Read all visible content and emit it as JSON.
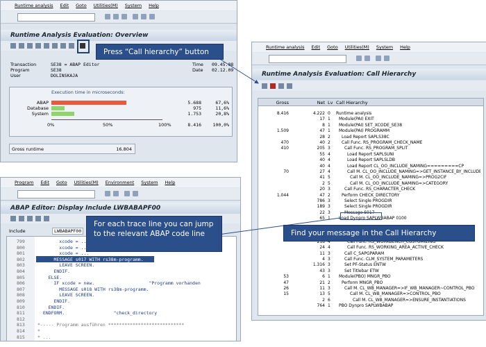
{
  "overview_window": {
    "menu": [
      "Runtime analysis",
      "Edit",
      "Goto",
      "Utilities(M)",
      "System",
      "Help"
    ],
    "title": "Runtime Analysis Evaluation: Overview",
    "fields": [
      {
        "label": "Transaction",
        "value": "SE38 = ABAP Editor"
      },
      {
        "label": "Program",
        "value": "SE38"
      },
      {
        "label": "User",
        "value": "DOLINSKAJA"
      }
    ],
    "right_fields": [
      {
        "label": "Time",
        "value": "09.45.08"
      },
      {
        "label": "Date",
        "value": "02.12.09"
      }
    ],
    "chart_title": "Execution time in microseconds:",
    "bars": [
      {
        "label": "ABAP",
        "value": "5.688",
        "share": "67,6%"
      },
      {
        "label": "Database",
        "value": "975",
        "share": "11,6%"
      },
      {
        "label": "System",
        "value": "1.753",
        "share": "20,8%"
      }
    ],
    "axis": [
      "0%",
      "50%",
      "100%"
    ],
    "total": {
      "value": "8.416",
      "share": "100,0%"
    },
    "gross_runtime": {
      "label": "Gross runtime",
      "value": "16.804"
    }
  },
  "hierarchy_window": {
    "menu": [
      "Runtime analysis",
      "Edit",
      "Goto",
      "Utilities(M)",
      "System",
      "Help"
    ],
    "title": "Runtime Analysis Evaluation: Call Hierarchy",
    "columns": [
      "Gross",
      "Net",
      "Lv",
      "Call Hierarchy"
    ],
    "rows": [
      [
        "8.416",
        "4.222",
        "0",
        "Runtime analysis"
      ],
      [
        null,
        "17",
        "1",
        "Module(PAI) EXIT"
      ],
      [
        null,
        "8",
        "1",
        "Module(PAI) SET_XCODE_SE38"
      ],
      [
        "1.509",
        "47",
        "1",
        "Module(PAI) PROGRAMM"
      ],
      [
        null,
        "28",
        "2",
        "Load Report SAPLS38C"
      ],
      [
        "470",
        "40",
        "2",
        "Call Func. RS_PROGRAM_CHECK_NAME"
      ],
      [
        "410",
        "205",
        "3",
        "Call Func. RS_PROGRAM_SPLIT"
      ],
      [
        null,
        "55",
        "4",
        "Load Report SAPLSUNI"
      ],
      [
        null,
        "40",
        "4",
        "Load Report SAPLSLDB"
      ],
      [
        null,
        "40",
        "4",
        "Load Report CL_OO_INCLUDE_NAMING=========CP"
      ],
      [
        "70",
        "27",
        "4",
        "Call M. CL_OO_INCLUDE_NAMING=>GET_INSTANCE_BY_INCLUDE"
      ],
      [
        null,
        "41",
        "5",
        "Call M. CL_OO_INCLUDE_NAMING=>PROG2CIF"
      ],
      [
        null,
        "2",
        "5",
        "Call M. CL_OO_INCLUDE_NAMING=>CATEGORY"
      ],
      [
        null,
        "20",
        "3",
        "Call Func. RS_CHARACTER_CHECK"
      ],
      [
        "1.044",
        "47",
        "2",
        "Perform CHECK_DIRECTORY"
      ],
      [
        null,
        "786",
        "3",
        "Select Single PROGDIR"
      ],
      [
        null,
        "189",
        "3",
        "Select Single PROGDIR"
      ],
      [
        null,
        "22",
        "3",
        "Message S017"
      ],
      [
        null,
        "65",
        "1",
        "Load Dynpro SAPLWBABAP 0100"
      ],
      [
        null,
        null,
        null,
        null
      ],
      [
        null,
        null,
        null,
        null
      ],
      [
        null,
        null,
        null,
        null
      ],
      [
        null,
        "218",
        "4",
        "Call Func. RS_WORKBENCH_CUSTOMIZING"
      ],
      [
        null,
        "24",
        "4",
        "Call Func. RS_WORKING_AREA_ACTIVE_CHECK"
      ],
      [
        null,
        "11",
        "3",
        "Call C_SAPGPARAM"
      ],
      [
        null,
        "4",
        "3",
        "Call Func. CLM_SYSTEM_PARAMETERS"
      ],
      [
        null,
        "1.316",
        "3",
        "Set PF-Status ENTW"
      ],
      [
        null,
        "43",
        "3",
        "Set Titlebar ETW"
      ],
      [
        "53",
        "6",
        "1",
        "Module(PBO) MNGR_PBO"
      ],
      [
        "47",
        "21",
        "2",
        "Perform MNGR_PBO"
      ],
      [
        "26",
        "11",
        "3",
        "Call M. CL_WB_MANAGER=>IF_WB_MANAGER~CONTROL_PBO"
      ],
      [
        "15",
        "13",
        "5",
        "Call M. CL_WB_MANAGER=>CONTROL_PBO"
      ],
      [
        null,
        "2",
        "6",
        "Call M. CL_WB_MANAGER=>ENSURE_INSTANTIATIONS"
      ],
      [
        null,
        "764",
        "1",
        "PBO Dynpro SAPLWBABAP"
      ]
    ]
  },
  "editor_window": {
    "menu": [
      "Program",
      "Edit",
      "Goto",
      "Utilities(M)",
      "Environment",
      "System",
      "Help"
    ],
    "title": "ABAP Editor: Display Include LWBABAPF00",
    "include_label": "Include",
    "include_name": "LWBABAPF00",
    "lines": [
      [
        "799",
        "        xcode = ..."
      ],
      [
        "800",
        "        xcode = ..."
      ],
      [
        "801",
        "        xcode = ..."
      ],
      [
        "802",
        "      MESSAGE s017 WITH rs38m-programm."
      ],
      [
        "803",
        "        LEAVE SCREEN."
      ],
      [
        "804",
        "      ENDIF."
      ],
      [
        "805",
        "    ELSE."
      ],
      [
        "806",
        "      IF xcode = new.                    \"Programm vorhanden"
      ],
      [
        "807",
        "        MESSAGE s018 WITH rs38m-programm."
      ],
      [
        "808",
        "        LEAVE SCREEN."
      ],
      [
        "809",
        "      ENDIF."
      ],
      [
        "810",
        "    ENDIF."
      ],
      [
        "811",
        "  ENDFORM.                  \"check_directory"
      ],
      [
        "812",
        null
      ],
      [
        "813",
        "*----- Programm ausführen ****************************"
      ],
      [
        "814",
        "*"
      ],
      [
        "815",
        "* ..."
      ]
    ]
  },
  "callouts": [
    "Press “Call hierarchy” button",
    "For each trace line you can jump to the relevant ABAP code line",
    "Find your message in the Call Hierarchy"
  ]
}
